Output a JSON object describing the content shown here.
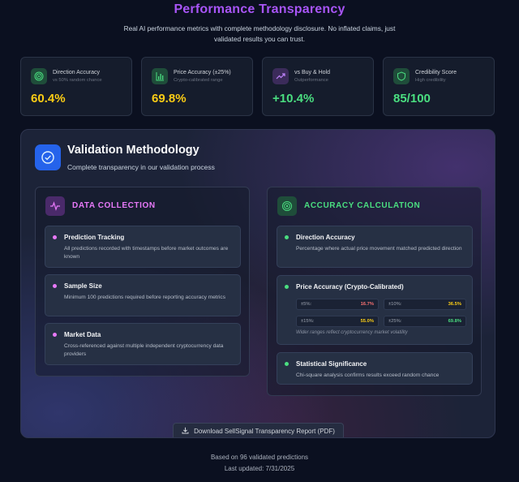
{
  "header": {
    "title": "Performance Transparency",
    "subtitle": "Real AI performance metrics with complete methodology disclosure. No inflated claims, just validated results you can trust."
  },
  "stats": [
    {
      "label": "Direction Accuracy",
      "sub": "vs 50% random chance",
      "value": "60.4%",
      "color": "#facc15",
      "icon": "target-icon"
    },
    {
      "label": "Price Accuracy (±25%)",
      "sub": "Crypto-calibrated range",
      "value": "69.8%",
      "color": "#facc15",
      "icon": "bar-chart-icon"
    },
    {
      "label": "vs Buy & Hold",
      "sub": "Outperformance",
      "value": "+10.4%",
      "color": "#4ade80",
      "icon": "trend-up-icon"
    },
    {
      "label": "Credibility Score",
      "sub": "High credibility",
      "value": "85/100",
      "color": "#4ade80",
      "icon": "shield-icon"
    }
  ],
  "methodology": {
    "title": "Validation Methodology",
    "subtitle": "Complete transparency in our validation process",
    "data_collection": {
      "title": "DATA COLLECTION",
      "color": "#e879f9",
      "items": [
        {
          "title": "Prediction Tracking",
          "desc": "All predictions recorded with timestamps before market outcomes are known"
        },
        {
          "title": "Sample Size",
          "desc": "Minimum 100 predictions required before reporting accuracy metrics"
        },
        {
          "title": "Market Data",
          "desc": "Cross-referenced against multiple independent cryptocurrency data providers"
        }
      ]
    },
    "accuracy_calculation": {
      "title": "ACCURACY CALCULATION",
      "color": "#4ade80",
      "direction": {
        "title": "Direction Accuracy",
        "desc": "Percentage where actual price movement matched predicted direction"
      },
      "price": {
        "title": "Price Accuracy (Crypto-Calibrated)",
        "ranges": [
          {
            "label": "±5%:",
            "value": "16.7%",
            "color": "#f87171"
          },
          {
            "label": "±10%:",
            "value": "36.5%",
            "color": "#facc15"
          },
          {
            "label": "±15%:",
            "value": "55.0%",
            "color": "#facc15"
          },
          {
            "label": "±25%:",
            "value": "69.8%",
            "color": "#4ade80"
          }
        ],
        "note": "Wider ranges reflect cryptocurrency market volatility"
      },
      "significance": {
        "title": "Statistical Significance",
        "desc": "Chi-square analysis confirms results exceed random chance"
      }
    },
    "download_label": "Download SellSignal Transparency Report (PDF)"
  },
  "footer": {
    "based_on": "Based on 96 validated predictions",
    "updated": "Last updated: 7/31/2025"
  }
}
